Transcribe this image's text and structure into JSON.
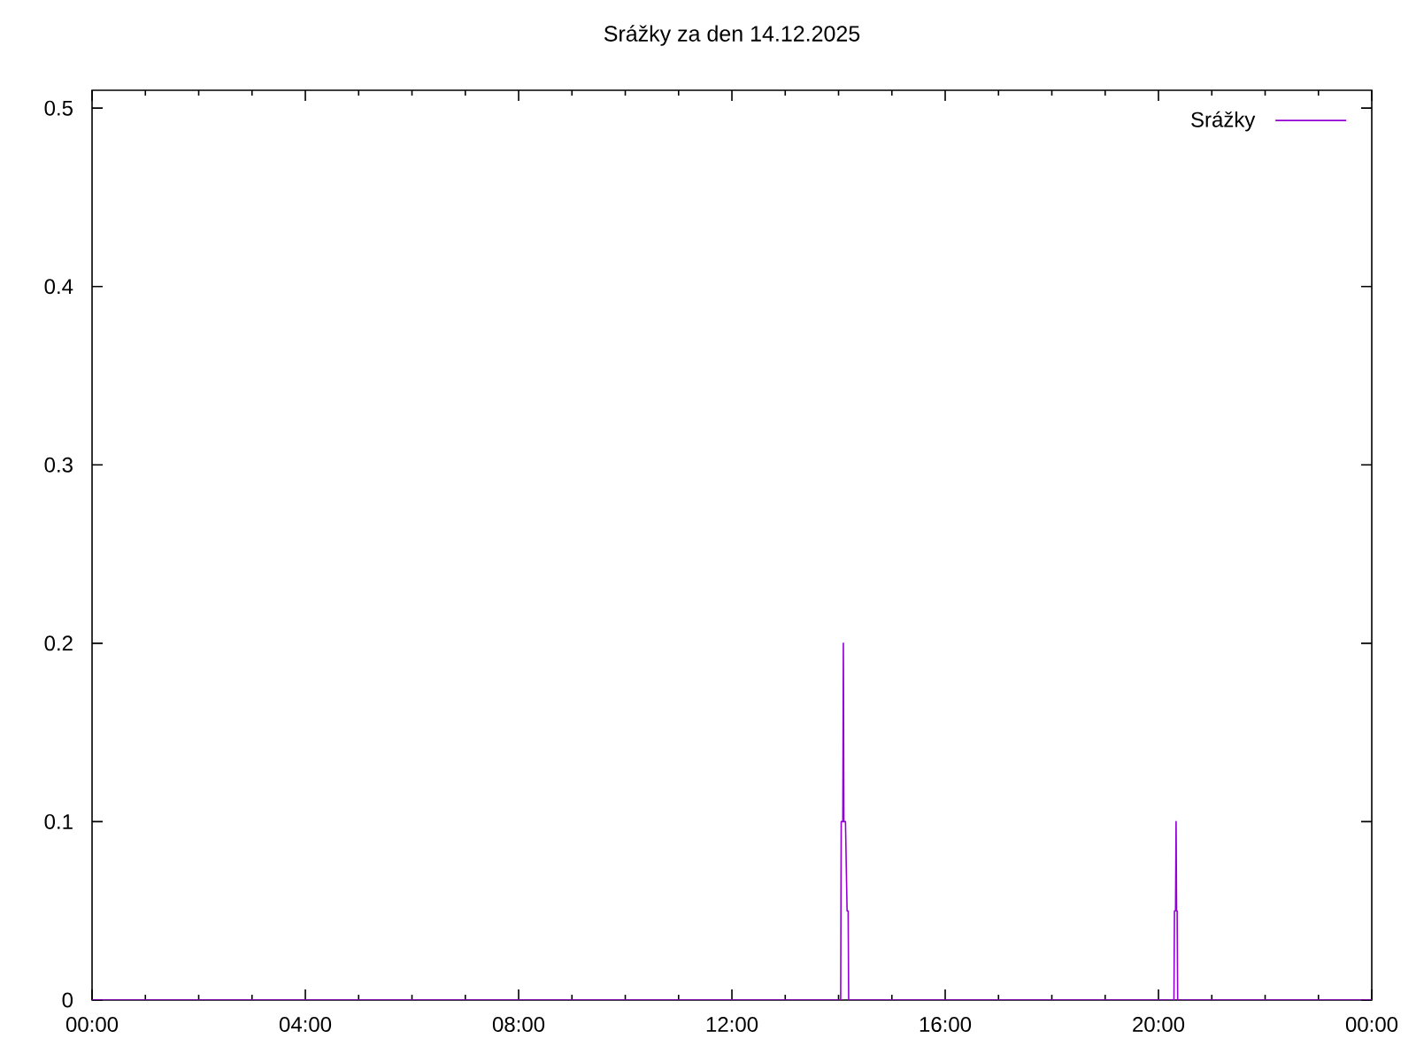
{
  "chart_data": {
    "type": "line",
    "title": "Srážky za den 14.12.2025",
    "series": [
      {
        "name": "Srážky",
        "color": "#9400d3",
        "x": [
          0,
          14.04,
          14.05,
          14.08,
          14.09,
          14.1,
          14.13,
          14.16,
          14.18,
          14.19,
          20.29,
          20.3,
          20.32,
          20.33,
          20.34,
          20.35,
          20.36,
          24
        ],
        "values": [
          0,
          0,
          0.1,
          0.1,
          0.2,
          0.1,
          0.1,
          0.05,
          0.05,
          0,
          0,
          0.05,
          0.05,
          0.1,
          0.05,
          0.05,
          0,
          0
        ]
      }
    ],
    "xlim": [
      0,
      24
    ],
    "xticks": [
      {
        "value": 0,
        "label": "00:00"
      },
      {
        "value": 1,
        "label": null
      },
      {
        "value": 2,
        "label": null
      },
      {
        "value": 3,
        "label": null
      },
      {
        "value": 4,
        "label": "04:00"
      },
      {
        "value": 5,
        "label": null
      },
      {
        "value": 6,
        "label": null
      },
      {
        "value": 7,
        "label": null
      },
      {
        "value": 8,
        "label": "08:00"
      },
      {
        "value": 9,
        "label": null
      },
      {
        "value": 10,
        "label": null
      },
      {
        "value": 11,
        "label": null
      },
      {
        "value": 12,
        "label": "12:00"
      },
      {
        "value": 13,
        "label": null
      },
      {
        "value": 14,
        "label": null
      },
      {
        "value": 15,
        "label": null
      },
      {
        "value": 16,
        "label": "16:00"
      },
      {
        "value": 17,
        "label": null
      },
      {
        "value": 18,
        "label": null
      },
      {
        "value": 19,
        "label": null
      },
      {
        "value": 20,
        "label": "20:00"
      },
      {
        "value": 21,
        "label": null
      },
      {
        "value": 22,
        "label": null
      },
      {
        "value": 23,
        "label": null
      },
      {
        "value": 24,
        "label": "00:00"
      }
    ],
    "ylim": [
      0,
      0.51
    ],
    "yticks": [
      0,
      0.1,
      0.2,
      0.3,
      0.4,
      0.5
    ],
    "legend": "top right",
    "line_style": "solid"
  }
}
